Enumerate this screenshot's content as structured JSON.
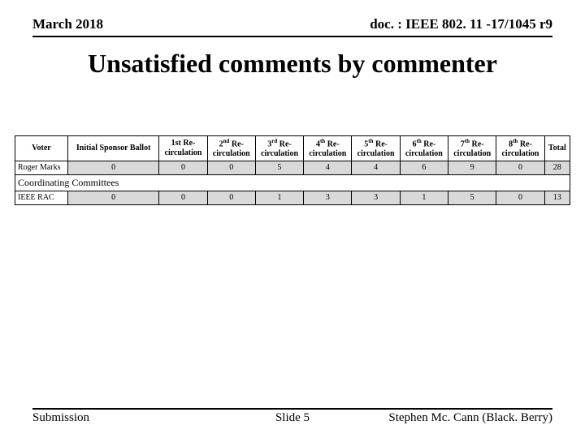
{
  "header": {
    "date": "March 2018",
    "doc": "doc. : IEEE 802. 11 -17/1045 r9"
  },
  "title": "Unsatisfied comments by commenter",
  "table": {
    "columns": [
      "Voter",
      "Initial Sponsor Ballot",
      "1st Re-circulation",
      "2nd Re-circulation",
      "3rd Re-circulation",
      "4th Re-circulation",
      "5th Re-circulation",
      "6th Re-circulation",
      "7th Re-circulation",
      "8th Re-circulation",
      "Total"
    ],
    "rows": [
      {
        "voter": "Roger Marks",
        "values": [
          "0",
          "0",
          "0",
          "5",
          "4",
          "4",
          "6",
          "9",
          "0",
          "28"
        ]
      }
    ],
    "subheading": "Coordinating Committees",
    "rows2": [
      {
        "voter": "IEEE RAC",
        "values": [
          "0",
          "0",
          "0",
          "1",
          "3",
          "3",
          "1",
          "5",
          "0",
          "13"
        ]
      }
    ],
    "header_bg": "#ffffff",
    "data_bg": "#d9d9d9",
    "border_color": "#000000"
  },
  "footer": {
    "left": "Submission",
    "center": "Slide 5",
    "right": "Stephen Mc. Cann (Black. Berry)"
  }
}
